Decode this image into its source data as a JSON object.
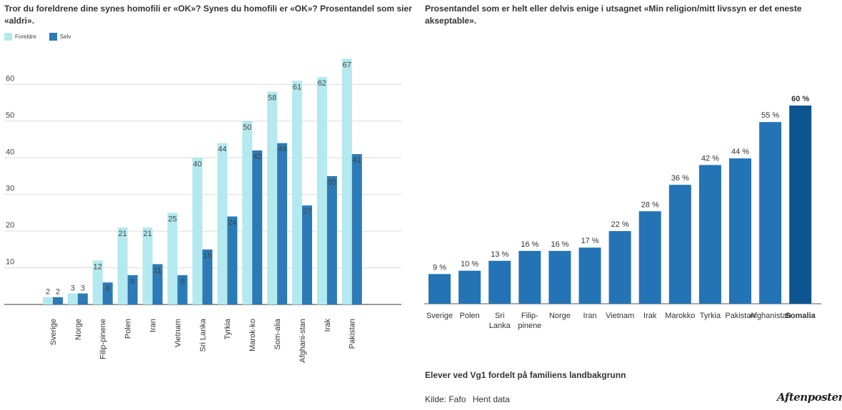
{
  "left_chart": {
    "title": "Tror du foreldrene dine synes homofili er «OK»? Synes du homofili er «OK»? Prosentandel som sier «aldri».",
    "legend": [
      "Foreldre",
      "Selv"
    ]
  },
  "right_chart": {
    "title": "Prosentandel som er helt eller delvis enige i utsagnet «Min religion/mitt livssyn er det eneste akseptable»."
  },
  "footer": {
    "subtitle": "Elever ved Vg1 fordelt på familiens landbakgrunn",
    "source": "Kilde: Fafo",
    "data_link": "Hent data",
    "brand": "Aftenposten"
  },
  "colors": {
    "foreldre": "#b3e9ef",
    "selv": "#2c7bb6",
    "bar": "#2474b5",
    "highlight": "#0d5591",
    "grid": "#dcdcdc"
  },
  "chart_data": [
    {
      "type": "bar",
      "title": "Tror du foreldrene dine synes homofili er «OK»? Synes du homofili er «OK»? Prosentandel som sier «aldri».",
      "categories": [
        "Sverige",
        "Norge",
        "Filip-pinene",
        "Polen",
        "Iran",
        "Vietnam",
        "Sri Lanka",
        "Tyrkia",
        "Marok-ko",
        "Som-alia",
        "Afghani-stan",
        "Irak",
        "Pakistan"
      ],
      "series": [
        {
          "name": "Foreldre",
          "values": [
            2,
            3,
            12,
            21,
            21,
            25,
            40,
            44,
            50,
            58,
            61,
            62,
            67
          ]
        },
        {
          "name": "Selv",
          "values": [
            2,
            3,
            6,
            8,
            11,
            8,
            15,
            24,
            42,
            44,
            27,
            35,
            41
          ]
        }
      ],
      "yticks": [
        10,
        20,
        30,
        40,
        50,
        60
      ],
      "ylim": [
        0,
        70
      ],
      "grid": true,
      "legend_position": "top-left"
    },
    {
      "type": "bar",
      "title": "Prosentandel som er helt eller delvis enige i utsagnet «Min religion/mitt livssyn er det eneste akseptable».",
      "categories": [
        "Sverige",
        "Polen",
        "Sri Lanka",
        "Filip-pinene",
        "Norge",
        "Iran",
        "Vietnam",
        "Irak",
        "Marokko",
        "Tyrkia",
        "Pakistan",
        "Afghanistan",
        "Somalia"
      ],
      "values": [
        9,
        10,
        13,
        16,
        16,
        17,
        22,
        28,
        36,
        42,
        44,
        55,
        60
      ],
      "labels": [
        "9 %",
        "10 %",
        "13 %",
        "16 %",
        "16 %",
        "17 %",
        "22 %",
        "28 %",
        "36 %",
        "42 %",
        "44 %",
        "55 %",
        "60 %"
      ],
      "highlight": "Somalia",
      "ylim": [
        0,
        60
      ],
      "grid": false
    }
  ]
}
